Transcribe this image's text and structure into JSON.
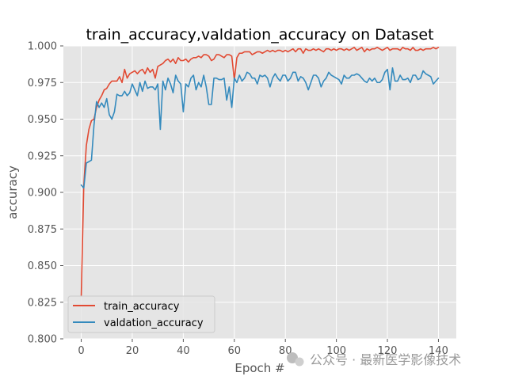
{
  "chart_data": {
    "type": "line",
    "title": "train_accuracy,valdation_accuracy on Dataset",
    "xlabel": "Epoch #",
    "ylabel": "accuracy",
    "xlim": [
      -7,
      147
    ],
    "ylim": [
      0.8,
      1.0
    ],
    "xticks": [
      0,
      20,
      40,
      60,
      80,
      100,
      120,
      140
    ],
    "xtick_labels": [
      "0",
      "20",
      "40",
      "60",
      "80",
      "100",
      "120",
      "140"
    ],
    "yticks": [
      0.8,
      0.825,
      0.85,
      0.875,
      0.9,
      0.925,
      0.95,
      0.975,
      1.0
    ],
    "ytick_labels": [
      "0.800",
      "0.825",
      "0.850",
      "0.875",
      "0.900",
      "0.925",
      "0.950",
      "0.975",
      "1.000"
    ],
    "grid": true,
    "background": "#e5e5e5",
    "legend_position": "lower-left",
    "x": [
      0,
      1,
      2,
      3,
      4,
      5,
      6,
      7,
      8,
      9,
      10,
      11,
      12,
      13,
      14,
      15,
      16,
      17,
      18,
      19,
      20,
      21,
      22,
      23,
      24,
      25,
      26,
      27,
      28,
      29,
      30,
      31,
      32,
      33,
      34,
      35,
      36,
      37,
      38,
      39,
      40,
      41,
      42,
      43,
      44,
      45,
      46,
      47,
      48,
      49,
      50,
      51,
      52,
      53,
      54,
      55,
      56,
      57,
      58,
      59,
      60,
      61,
      62,
      63,
      64,
      65,
      66,
      67,
      68,
      69,
      70,
      71,
      72,
      73,
      74,
      75,
      76,
      77,
      78,
      79,
      80,
      81,
      82,
      83,
      84,
      85,
      86,
      87,
      88,
      89,
      90,
      91,
      92,
      93,
      94,
      95,
      96,
      97,
      98,
      99,
      100,
      101,
      102,
      103,
      104,
      105,
      106,
      107,
      108,
      109,
      110,
      111,
      112,
      113,
      114,
      115,
      116,
      117,
      118,
      119,
      120,
      121,
      122,
      123,
      124,
      125,
      126,
      127,
      128,
      129,
      130,
      131,
      132,
      133,
      134,
      135,
      136,
      137,
      138,
      139,
      140
    ],
    "series": [
      {
        "name": "train_accuracy",
        "color": "#e24a33",
        "values": [
          0.829,
          0.905,
          0.932,
          0.943,
          0.949,
          0.95,
          0.958,
          0.963,
          0.966,
          0.97,
          0.971,
          0.974,
          0.976,
          0.976,
          0.976,
          0.979,
          0.975,
          0.984,
          0.978,
          0.981,
          0.982,
          0.983,
          0.981,
          0.983,
          0.984,
          0.981,
          0.985,
          0.982,
          0.984,
          0.978,
          0.986,
          0.987,
          0.988,
          0.99,
          0.991,
          0.989,
          0.991,
          0.988,
          0.992,
          0.99,
          0.99,
          0.991,
          0.989,
          0.991,
          0.992,
          0.992,
          0.993,
          0.992,
          0.994,
          0.994,
          0.993,
          0.99,
          0.991,
          0.994,
          0.994,
          0.993,
          0.992,
          0.994,
          0.994,
          0.993,
          0.977,
          0.992,
          0.995,
          0.995,
          0.996,
          0.996,
          0.996,
          0.994,
          0.995,
          0.996,
          0.996,
          0.995,
          0.996,
          0.997,
          0.996,
          0.997,
          0.996,
          0.997,
          0.997,
          0.996,
          0.997,
          0.996,
          0.997,
          0.998,
          0.996,
          0.998,
          0.998,
          0.995,
          0.998,
          0.997,
          0.997,
          0.998,
          0.997,
          0.998,
          0.997,
          0.996,
          0.998,
          0.998,
          0.997,
          0.998,
          0.997,
          0.998,
          0.998,
          0.997,
          0.998,
          0.997,
          0.998,
          0.999,
          0.997,
          0.998,
          0.999,
          0.996,
          0.998,
          0.997,
          0.998,
          0.998,
          0.999,
          0.998,
          0.997,
          0.998,
          0.999,
          0.997,
          0.998,
          0.998,
          0.998,
          0.997,
          0.999,
          0.998,
          0.998,
          0.997,
          0.999,
          0.997,
          0.997,
          0.998,
          0.997,
          0.998,
          0.998,
          0.998,
          0.999,
          0.998,
          0.999
        ]
      },
      {
        "name": "valdation_accuracy",
        "color": "#348abd",
        "values": [
          0.905,
          0.903,
          0.92,
          0.921,
          0.922,
          0.946,
          0.962,
          0.958,
          0.961,
          0.958,
          0.964,
          0.953,
          0.95,
          0.955,
          0.967,
          0.966,
          0.966,
          0.969,
          0.966,
          0.968,
          0.974,
          0.97,
          0.966,
          0.975,
          0.969,
          0.976,
          0.971,
          0.972,
          0.972,
          0.97,
          0.974,
          0.943,
          0.976,
          0.97,
          0.978,
          0.974,
          0.968,
          0.98,
          0.976,
          0.974,
          0.955,
          0.974,
          0.972,
          0.978,
          0.98,
          0.97,
          0.975,
          0.972,
          0.98,
          0.972,
          0.96,
          0.96,
          0.978,
          0.978,
          0.977,
          0.977,
          0.978,
          0.963,
          0.972,
          0.958,
          0.978,
          0.975,
          0.98,
          0.976,
          0.978,
          0.982,
          0.981,
          0.978,
          0.978,
          0.974,
          0.98,
          0.979,
          0.98,
          0.978,
          0.972,
          0.978,
          0.981,
          0.978,
          0.976,
          0.98,
          0.98,
          0.976,
          0.978,
          0.982,
          0.982,
          0.976,
          0.979,
          0.978,
          0.975,
          0.97,
          0.975,
          0.98,
          0.98,
          0.978,
          0.972,
          0.976,
          0.978,
          0.982,
          0.98,
          0.979,
          0.978,
          0.977,
          0.974,
          0.98,
          0.978,
          0.978,
          0.98,
          0.98,
          0.981,
          0.98,
          0.978,
          0.976,
          0.975,
          0.978,
          0.976,
          0.978,
          0.975,
          0.975,
          0.977,
          0.982,
          0.984,
          0.97,
          0.985,
          0.976,
          0.976,
          0.98,
          0.977,
          0.977,
          0.978,
          0.975,
          0.98,
          0.98,
          0.977,
          0.978,
          0.983,
          0.981,
          0.98,
          0.979,
          0.974,
          0.976,
          0.978
        ]
      }
    ]
  },
  "watermark": {
    "text": "公众号 · 最新医学影像技术"
  }
}
